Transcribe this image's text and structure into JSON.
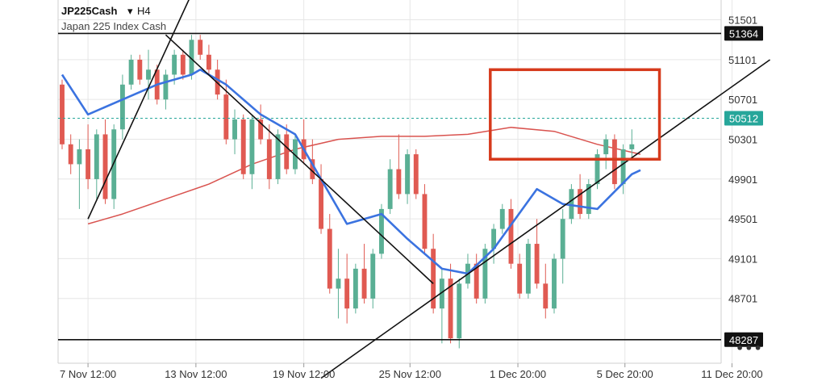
{
  "header": {
    "symbol": "JP225Cash",
    "dropdown_glyph": "▾",
    "timeframe": "H4",
    "subtitle": "Japan 225 Index Cash"
  },
  "price_badges": [
    {
      "value": "51364",
      "color": "#111111"
    },
    {
      "value": "50512",
      "color": "#26a69a"
    },
    {
      "value": "48287",
      "color": "#111111"
    }
  ],
  "more_menu": {
    "label": "•••",
    "icon": "more-dots-icon"
  },
  "colors": {
    "bull": "#5aaf94",
    "bear": "#e05a52",
    "ma_fast": "#3b73e0",
    "ma_slow": "#d9534f",
    "box": "#d63a1c",
    "trend": "#111111",
    "grid": "#e6e6e6"
  },
  "chart_data": {
    "type": "candlestick",
    "y_range": [
      48050,
      51700
    ],
    "y_ticks": [
      "51501",
      "51101",
      "50701",
      "50301",
      "49901",
      "49501",
      "49101",
      "48701"
    ],
    "x_range": [
      0,
      67
    ],
    "x_ticks": [
      {
        "label": "7 Nov 12:00",
        "x": 3
      },
      {
        "label": "13 Nov 12:00",
        "x": 15.5
      },
      {
        "label": "19 Nov 12:00",
        "x": 28
      },
      {
        "label": "25 Nov 12:00",
        "x": 40.3
      },
      {
        "label": "1 Dec 20:00",
        "x": 52.8
      },
      {
        "label": "5 Dec 20:00",
        "x": 65.2
      },
      {
        "label": "11 Dec 20:00",
        "x": 77.6
      }
    ],
    "candles": [
      [
        50850,
        50900,
        50200,
        50250
      ],
      [
        50250,
        50350,
        49950,
        50050
      ],
      [
        50050,
        50300,
        49600,
        50200
      ],
      [
        50200,
        50450,
        49800,
        49900
      ],
      [
        49900,
        50400,
        49700,
        50350
      ],
      [
        50350,
        50500,
        49650,
        49700
      ],
      [
        49700,
        50450,
        49600,
        50400
      ],
      [
        50400,
        50950,
        50300,
        50850
      ],
      [
        50850,
        51150,
        50800,
        51100
      ],
      [
        51100,
        51150,
        50850,
        50900
      ],
      [
        50900,
        51200,
        50700,
        51000
      ],
      [
        51000,
        51050,
        50650,
        50700
      ],
      [
        50700,
        51000,
        50600,
        50950
      ],
      [
        50950,
        51200,
        50850,
        51150
      ],
      [
        51150,
        51200,
        50900,
        50950
      ],
      [
        50950,
        51350,
        50900,
        51300
      ],
      [
        51300,
        51350,
        51100,
        51150
      ],
      [
        51150,
        51250,
        50950,
        51000
      ],
      [
        51000,
        51100,
        50700,
        50750
      ],
      [
        50750,
        50900,
        50250,
        50300
      ],
      [
        50300,
        50600,
        50150,
        50500
      ],
      [
        50500,
        50550,
        49900,
        49950
      ],
      [
        49950,
        50550,
        49800,
        50500
      ],
      [
        50500,
        50650,
        50250,
        50300
      ],
      [
        50300,
        50450,
        49800,
        49900
      ],
      [
        49900,
        50400,
        49850,
        50350
      ],
      [
        50350,
        50450,
        49950,
        50000
      ],
      [
        50000,
        50350,
        49950,
        50300
      ],
      [
        50300,
        50500,
        50050,
        50100
      ],
      [
        50100,
        50300,
        49850,
        49900
      ],
      [
        49900,
        50050,
        49350,
        49400
      ],
      [
        49400,
        49550,
        48750,
        48800
      ],
      [
        48800,
        49200,
        48500,
        48900
      ],
      [
        48900,
        49150,
        48450,
        48600
      ],
      [
        48600,
        49050,
        48550,
        49000
      ],
      [
        49000,
        49250,
        48650,
        48700
      ],
      [
        48700,
        49200,
        48600,
        49150
      ],
      [
        49150,
        49650,
        49100,
        49600
      ],
      [
        49600,
        50100,
        49550,
        50000
      ],
      [
        50000,
        50350,
        49700,
        49750
      ],
      [
        49750,
        50200,
        49650,
        50150
      ],
      [
        50150,
        50200,
        49700,
        49750
      ],
      [
        49750,
        49850,
        49150,
        49200
      ],
      [
        49200,
        49350,
        48550,
        48600
      ],
      [
        48600,
        49000,
        48250,
        48900
      ],
      [
        48900,
        49050,
        48250,
        48300
      ],
      [
        48300,
        48900,
        48200,
        48850
      ],
      [
        48850,
        49150,
        48800,
        49050
      ],
      [
        49050,
        49150,
        48650,
        48700
      ],
      [
        48700,
        49250,
        48650,
        49200
      ],
      [
        49200,
        49450,
        49050,
        49400
      ],
      [
        49400,
        49650,
        49350,
        49600
      ],
      [
        49600,
        49700,
        49000,
        49050
      ],
      [
        49050,
        49150,
        48700,
        48750
      ],
      [
        48750,
        49300,
        48700,
        49250
      ],
      [
        49250,
        49500,
        48800,
        48850
      ],
      [
        48850,
        49050,
        48500,
        48600
      ],
      [
        48600,
        49150,
        48550,
        49100
      ],
      [
        49100,
        49600,
        48850,
        49500
      ],
      [
        49500,
        49850,
        49450,
        49800
      ],
      [
        49800,
        49950,
        49500,
        49550
      ],
      [
        49550,
        49900,
        49500,
        49850
      ],
      [
        49850,
        50200,
        49800,
        50150
      ],
      [
        50150,
        50350,
        50000,
        50300
      ],
      [
        50300,
        50350,
        49800,
        49850
      ],
      [
        49850,
        50250,
        49750,
        50200
      ],
      [
        50200,
        50400,
        50100,
        50250
      ]
    ],
    "moving_averages": [
      {
        "name": "fast",
        "color": "#3b73e0",
        "points": [
          [
            0,
            50950
          ],
          [
            3,
            50550
          ],
          [
            7,
            50700
          ],
          [
            11,
            50850
          ],
          [
            15,
            50950
          ],
          [
            16,
            51000
          ],
          [
            19,
            50850
          ],
          [
            23,
            50550
          ],
          [
            27,
            50350
          ],
          [
            30,
            49900
          ],
          [
            33,
            49450
          ],
          [
            35,
            49500
          ],
          [
            37,
            49550
          ],
          [
            40,
            49300
          ],
          [
            44,
            49000
          ],
          [
            47,
            48950
          ],
          [
            50,
            49200
          ],
          [
            55,
            49800
          ],
          [
            58,
            49650
          ],
          [
            62,
            49600
          ],
          [
            66,
            49950
          ],
          [
            67,
            49990
          ]
        ]
      },
      {
        "name": "slow",
        "color": "#d9534f",
        "points": [
          [
            3,
            49450
          ],
          [
            7,
            49550
          ],
          [
            12,
            49700
          ],
          [
            17,
            49850
          ],
          [
            22,
            50050
          ],
          [
            27,
            50200
          ],
          [
            32,
            50300
          ],
          [
            37,
            50330
          ],
          [
            42,
            50330
          ],
          [
            47,
            50350
          ],
          [
            52,
            50420
          ],
          [
            57,
            50380
          ],
          [
            62,
            50250
          ],
          [
            67,
            50150
          ]
        ]
      }
    ],
    "horizontal_levels": [
      51364,
      48287
    ],
    "trendlines": [
      {
        "from": [
          3,
          49500
        ],
        "to": [
          16,
          51950
        ]
      },
      {
        "from": [
          12,
          51350
        ],
        "to": [
          43,
          48850
        ]
      },
      {
        "from": [
          30,
          47900
        ],
        "to": [
          82,
          51100
        ]
      }
    ],
    "range_box": {
      "x": [
        49.6,
        69.2
      ],
      "y": [
        50100,
        51000
      ]
    }
  }
}
